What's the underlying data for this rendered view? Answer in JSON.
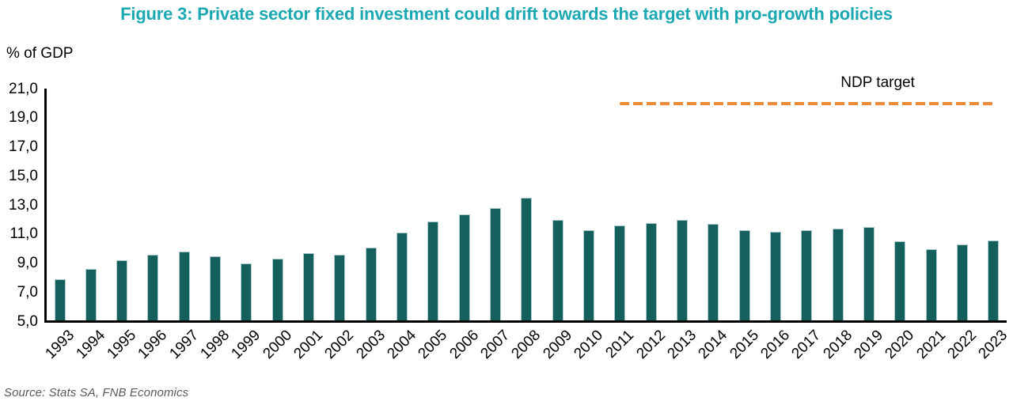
{
  "figure": {
    "title": "Figure 3: Private sector fixed investment could drift towards the target with pro-growth policies",
    "axis_unit_label": "% of GDP",
    "target_label": "NDP target",
    "source": "Source: Stats SA, FNB Economics"
  },
  "colors": {
    "title": "#1BA8B2",
    "bar_fill": "#155F5D",
    "bar_outline": "#AFCDD0",
    "target_line": "#ED8A38",
    "axis": "#000000",
    "source_text": "#595959"
  },
  "chart_data": {
    "type": "bar",
    "title": "Figure 3: Private sector fixed investment could drift towards the target with pro-growth policies",
    "xlabel": "",
    "ylabel": "% of GDP",
    "categories": [
      "1993",
      "1994",
      "1995",
      "1996",
      "1997",
      "1998",
      "1999",
      "2000",
      "2001",
      "2002",
      "2003",
      "2004",
      "2005",
      "2006",
      "2007",
      "2008",
      "2009",
      "2010",
      "2011",
      "2012",
      "2013",
      "2014",
      "2015",
      "2016",
      "2017",
      "2018",
      "2019",
      "2020",
      "2021",
      "2022",
      "2023"
    ],
    "values": [
      7.9,
      8.6,
      9.2,
      9.6,
      9.8,
      9.5,
      9.0,
      9.3,
      9.7,
      9.6,
      10.1,
      11.1,
      11.9,
      12.4,
      12.8,
      13.5,
      12.0,
      11.3,
      11.6,
      11.8,
      12.0,
      11.7,
      11.3,
      11.2,
      11.3,
      11.4,
      11.5,
      10.5,
      10.0,
      10.3,
      10.6
    ],
    "ylim": [
      5,
      21
    ],
    "y_ticks": [
      21,
      19,
      17,
      15,
      13,
      11,
      9,
      7,
      5
    ],
    "y_tick_labels": [
      "21,0",
      "19,0",
      "17,0",
      "15,0",
      "13,0",
      "11,0",
      "9,0",
      "7,0",
      "5,0"
    ],
    "decimal_separator": ",",
    "grid": false,
    "legend": false,
    "annotation": {
      "label": "NDP target",
      "value": 20.0,
      "from_category": "2011",
      "to_category": "2023",
      "style": "dashed",
      "color": "#ED8A38"
    }
  }
}
